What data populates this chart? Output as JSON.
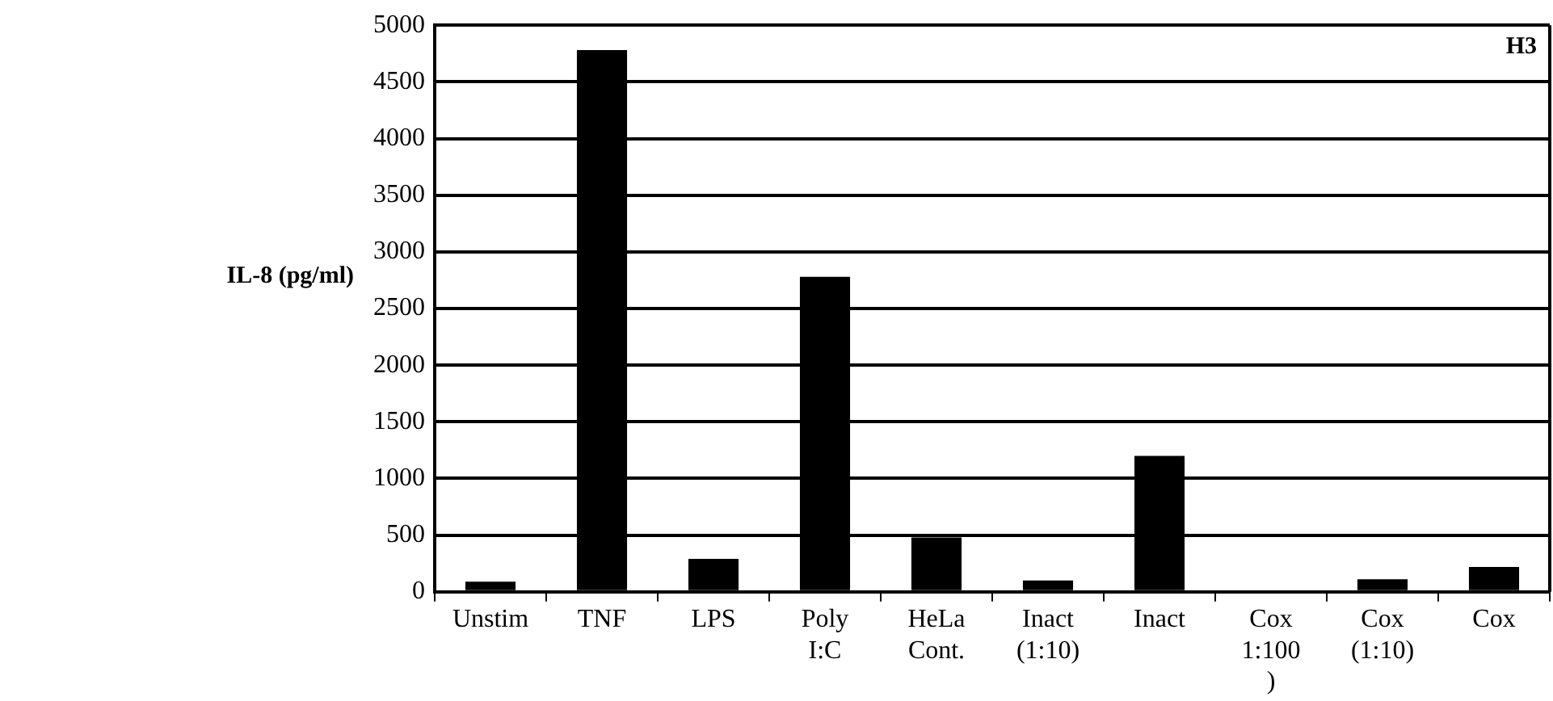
{
  "chart_data": {
    "type": "bar",
    "ylabel": "IL-8 (pg/ml)",
    "annotations": [
      "H3"
    ],
    "categories": [
      "Unstim",
      "TNF",
      "LPS",
      "Poly\nI:C",
      "HeLa\nCont.",
      "Inact\n(1:10)",
      "Inact",
      "Cox\n1:100\n)",
      "Cox\n(1:10)",
      "Cox"
    ],
    "values": [
      90,
      4780,
      290,
      2780,
      480,
      100,
      1200,
      0,
      110,
      220
    ],
    "color": "#000000",
    "ylim": [
      0,
      5000
    ],
    "yticks": [
      0,
      500,
      1000,
      1500,
      2000,
      2500,
      3000,
      3500,
      4000,
      4500,
      5000
    ],
    "grid": "y",
    "legend": false
  }
}
